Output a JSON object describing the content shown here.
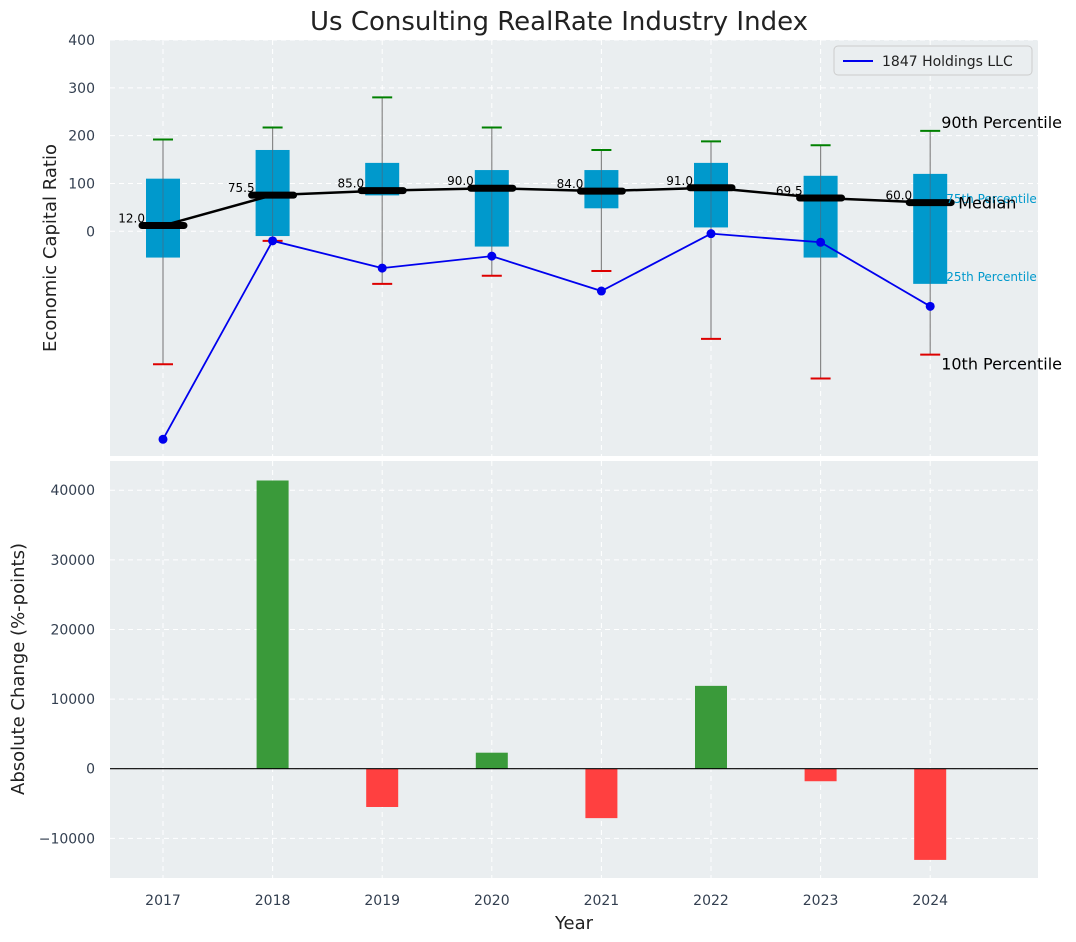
{
  "chart_data": [
    {
      "type": "box",
      "title": "Us Consulting RealRate Industry Index",
      "ylabel": "Economic Capital Ratio",
      "xlabel": "",
      "ylim": [
        -470,
        400
      ],
      "yticks": [
        0,
        100,
        200,
        300,
        400
      ],
      "categories": [
        "2017",
        "2018",
        "2019",
        "2020",
        "2021",
        "2022",
        "2023",
        "2024"
      ],
      "grid": true,
      "legend": {
        "placement": "top-right",
        "entries": [
          "1847 Holdings LLC"
        ]
      },
      "percentiles": {
        "p10": [
          -278,
          -20,
          -110,
          -93,
          -83,
          -225,
          -308,
          -258
        ],
        "p25": [
          -55,
          -10,
          75,
          -32,
          48,
          8,
          -55,
          -110
        ],
        "median": [
          12.0,
          75.5,
          85.0,
          90.0,
          84.0,
          91.0,
          69.5,
          60.0
        ],
        "p75": [
          110,
          170,
          143,
          128,
          128,
          143,
          116,
          120
        ],
        "p90": [
          192,
          217,
          280,
          217,
          170,
          188,
          180,
          210
        ]
      },
      "median_labels": [
        "12.0",
        "75.5",
        "85.0",
        "90.0",
        "84.0",
        "91.0",
        "69.5",
        "60.0"
      ],
      "series": [
        {
          "name": "1847 Holdings LLC",
          "values": [
            -435,
            -20,
            -77,
            -52,
            -125,
            -5,
            -23,
            -157
          ]
        }
      ],
      "annotations": {
        "p90": "90th Percentile",
        "p75": "75th Percentile",
        "median": "Median",
        "p25": "25th Percentile",
        "p10": "10th Percentile"
      },
      "colors": {
        "box": "#0099cc",
        "p90_cap": "#008000",
        "p10_cap": "#dd0000",
        "median": "#000000",
        "company": "#0000ee",
        "background": "#eaeef0"
      }
    },
    {
      "type": "bar",
      "title": "",
      "xlabel": "Year",
      "ylabel": "Absolute Change (%-points)",
      "categories": [
        "2017",
        "2018",
        "2019",
        "2020",
        "2021",
        "2022",
        "2023",
        "2024"
      ],
      "values": [
        0,
        41400,
        -5500,
        2300,
        -7100,
        11900,
        -1800,
        -13100
      ],
      "ylim": [
        -15700,
        44200
      ],
      "yticks": [
        -10000,
        0,
        10000,
        20000,
        30000,
        40000
      ],
      "ytick_labels": [
        "−10000",
        "0",
        "10000",
        "20000",
        "30000",
        "40000"
      ],
      "grid": true,
      "colors": {
        "positive": "#3a9a3a",
        "negative": "#ff4040"
      }
    }
  ]
}
